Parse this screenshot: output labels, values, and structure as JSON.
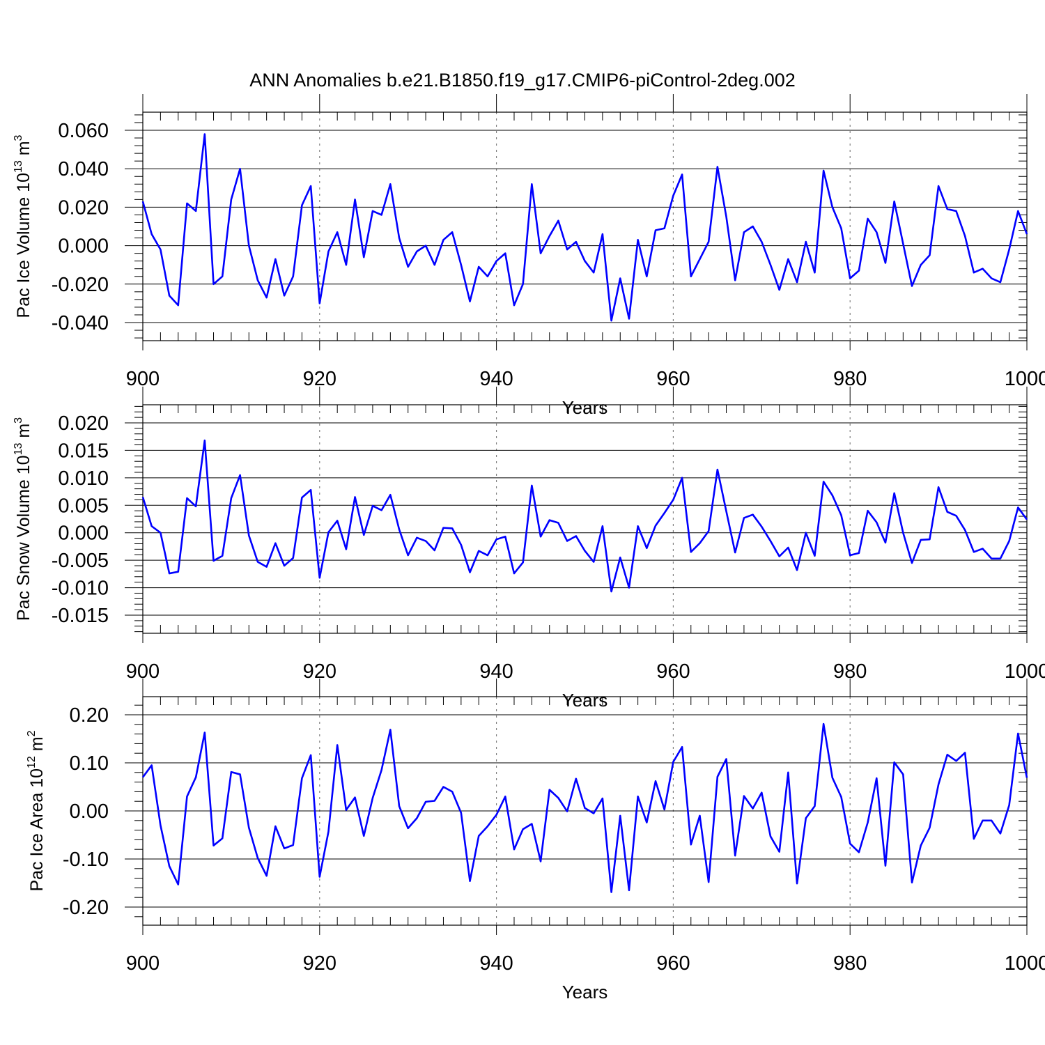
{
  "figure": {
    "title": "ANN Anomalies b.e21.B1850.f19_g17.CMIP6-piControl-2deg.002"
  },
  "chart_data": [
    {
      "type": "line",
      "xlabel": "Years",
      "ylabel": {
        "text": "Pac Ice Volume 10",
        "sup1": "13",
        "unit": " m",
        "sup2": "3"
      },
      "xlim": [
        900,
        1000
      ],
      "ylim": [
        -0.04,
        0.06
      ],
      "xticks": [
        900,
        920,
        940,
        960,
        980,
        1000
      ],
      "yticks": [
        -0.04,
        -0.02,
        0.0,
        0.02,
        0.04,
        0.06
      ],
      "ytick_labels": [
        "-0.040",
        "-0.020",
        "0.000",
        "0.020",
        "0.040",
        "0.060"
      ],
      "grid": "vertical dashed at major x ticks",
      "x_start": 900,
      "series": [
        {
          "color": "#0000ff",
          "values": [
            0.023,
            0.006,
            -0.002,
            -0.026,
            -0.031,
            0.022,
            0.018,
            0.058,
            -0.02,
            -0.016,
            0.024,
            0.04,
            0.0,
            -0.018,
            -0.027,
            -0.007,
            -0.026,
            -0.016,
            0.021,
            0.031,
            -0.03,
            -0.003,
            0.007,
            -0.01,
            0.024,
            -0.006,
            0.018,
            0.016,
            0.032,
            0.004,
            -0.011,
            -0.003,
            0.0,
            -0.01,
            0.003,
            0.007,
            -0.01,
            -0.029,
            -0.011,
            -0.016,
            -0.008,
            -0.004,
            -0.031,
            -0.02,
            0.032,
            -0.004,
            0.005,
            0.013,
            -0.002,
            0.002,
            -0.008,
            -0.014,
            0.006,
            -0.039,
            -0.017,
            -0.038,
            0.003,
            -0.016,
            0.008,
            0.009,
            0.026,
            0.037,
            -0.016,
            -0.007,
            0.002,
            0.041,
            0.015,
            -0.018,
            0.007,
            0.01,
            0.002,
            -0.01,
            -0.023,
            -0.007,
            -0.019,
            0.002,
            -0.014,
            0.039,
            0.02,
            0.009,
            -0.017,
            -0.013,
            0.014,
            0.007,
            -0.009,
            0.023,
            0.001,
            -0.021,
            -0.01,
            -0.005,
            0.031,
            0.019,
            0.018,
            0.005,
            -0.014,
            -0.012,
            -0.017,
            -0.019,
            -0.002,
            0.018,
            0.006
          ]
        }
      ]
    },
    {
      "type": "line",
      "xlabel": "Years",
      "ylabel": {
        "text": "Pac Snow Volume 10",
        "sup1": "13",
        "unit": " m",
        "sup2": "3"
      },
      "xlim": [
        900,
        1000
      ],
      "ylim": [
        -0.015,
        0.02
      ],
      "xticks": [
        900,
        920,
        940,
        960,
        980,
        1000
      ],
      "yticks": [
        -0.015,
        -0.01,
        -0.005,
        0.0,
        0.005,
        0.01,
        0.015,
        0.02
      ],
      "ytick_labels": [
        "-0.015",
        "-0.010",
        "-0.005",
        "0.000",
        "0.005",
        "0.010",
        "0.015",
        "0.020"
      ],
      "grid": "vertical dashed at major x ticks",
      "x_start": 900,
      "series": [
        {
          "color": "#0000ff",
          "values": [
            0.0065,
            0.0012,
            0.0,
            -0.0074,
            -0.0071,
            0.0063,
            0.0048,
            0.0168,
            -0.0051,
            -0.0042,
            0.0063,
            0.0105,
            -0.0005,
            -0.0053,
            -0.0062,
            -0.0019,
            -0.006,
            -0.0046,
            0.0064,
            0.0078,
            -0.0082,
            0.0001,
            0.0022,
            -0.003,
            0.0065,
            -0.0004,
            0.0049,
            0.0041,
            0.0069,
            0.0006,
            -0.0041,
            -0.0009,
            -0.0015,
            -0.0032,
            0.0009,
            0.0008,
            -0.0022,
            -0.0072,
            -0.0033,
            -0.0041,
            -0.0012,
            -0.0007,
            -0.0074,
            -0.0054,
            0.0086,
            -0.0007,
            0.0023,
            0.0018,
            -0.0015,
            -0.0006,
            -0.0033,
            -0.0053,
            0.0012,
            -0.0107,
            -0.0045,
            -0.01,
            0.0012,
            -0.0028,
            0.0013,
            0.0036,
            0.006,
            0.01,
            -0.0035,
            -0.0019,
            0.0003,
            0.0115,
            0.0039,
            -0.0036,
            0.0027,
            0.0033,
            0.0011,
            -0.0015,
            -0.0043,
            -0.0027,
            -0.0068,
            0.0,
            -0.0042,
            0.0093,
            0.0068,
            0.0032,
            -0.0041,
            -0.0037,
            0.004,
            0.0019,
            -0.0018,
            0.0072,
            0.0,
            -0.0055,
            -0.0013,
            -0.0012,
            0.0083,
            0.0038,
            0.0031,
            0.0005,
            -0.0035,
            -0.0029,
            -0.0047,
            -0.0047,
            -0.0015,
            0.0046,
            0.0024
          ]
        }
      ]
    },
    {
      "type": "line",
      "xlabel": "Years",
      "ylabel": {
        "text": "Pac Ice Area 10",
        "sup1": "12",
        "unit": " m",
        "sup2": "2"
      },
      "xlim": [
        900,
        1000
      ],
      "ylim": [
        -0.2,
        0.2
      ],
      "xticks": [
        900,
        920,
        940,
        960,
        980,
        1000
      ],
      "yticks": [
        -0.2,
        -0.1,
        0.0,
        0.1,
        0.2
      ],
      "ytick_labels": [
        "-0.20",
        "-0.10",
        "0.00",
        "0.10",
        "0.20"
      ],
      "grid": "vertical dashed at major x ticks",
      "x_start": 900,
      "series": [
        {
          "color": "#0000ff",
          "values": [
            0.07,
            0.095,
            -0.03,
            -0.115,
            -0.153,
            0.03,
            0.07,
            0.163,
            -0.072,
            -0.057,
            0.081,
            0.076,
            -0.035,
            -0.098,
            -0.135,
            -0.032,
            -0.078,
            -0.071,
            0.068,
            0.116,
            -0.137,
            -0.043,
            0.137,
            0.002,
            0.028,
            -0.052,
            0.027,
            0.085,
            0.169,
            0.01,
            -0.036,
            -0.015,
            0.019,
            0.021,
            0.05,
            0.04,
            -0.004,
            -0.146,
            -0.052,
            -0.032,
            -0.008,
            0.03,
            -0.08,
            -0.038,
            -0.027,
            -0.105,
            0.044,
            0.027,
            -0.001,
            0.067,
            0.006,
            -0.005,
            0.026,
            -0.169,
            -0.01,
            -0.165,
            0.03,
            -0.024,
            0.062,
            0.003,
            0.102,
            0.133,
            -0.07,
            -0.01,
            -0.148,
            0.071,
            0.108,
            -0.093,
            0.031,
            0.005,
            0.038,
            -0.053,
            -0.085,
            0.08,
            -0.151,
            -0.015,
            0.01,
            0.181,
            0.069,
            0.029,
            -0.068,
            -0.086,
            -0.024,
            0.068,
            -0.114,
            0.101,
            0.076,
            -0.149,
            -0.072,
            -0.035,
            0.055,
            0.117,
            0.104,
            0.121,
            -0.058,
            -0.02,
            -0.02,
            -0.047,
            0.012,
            0.161,
            0.069
          ]
        }
      ]
    }
  ]
}
